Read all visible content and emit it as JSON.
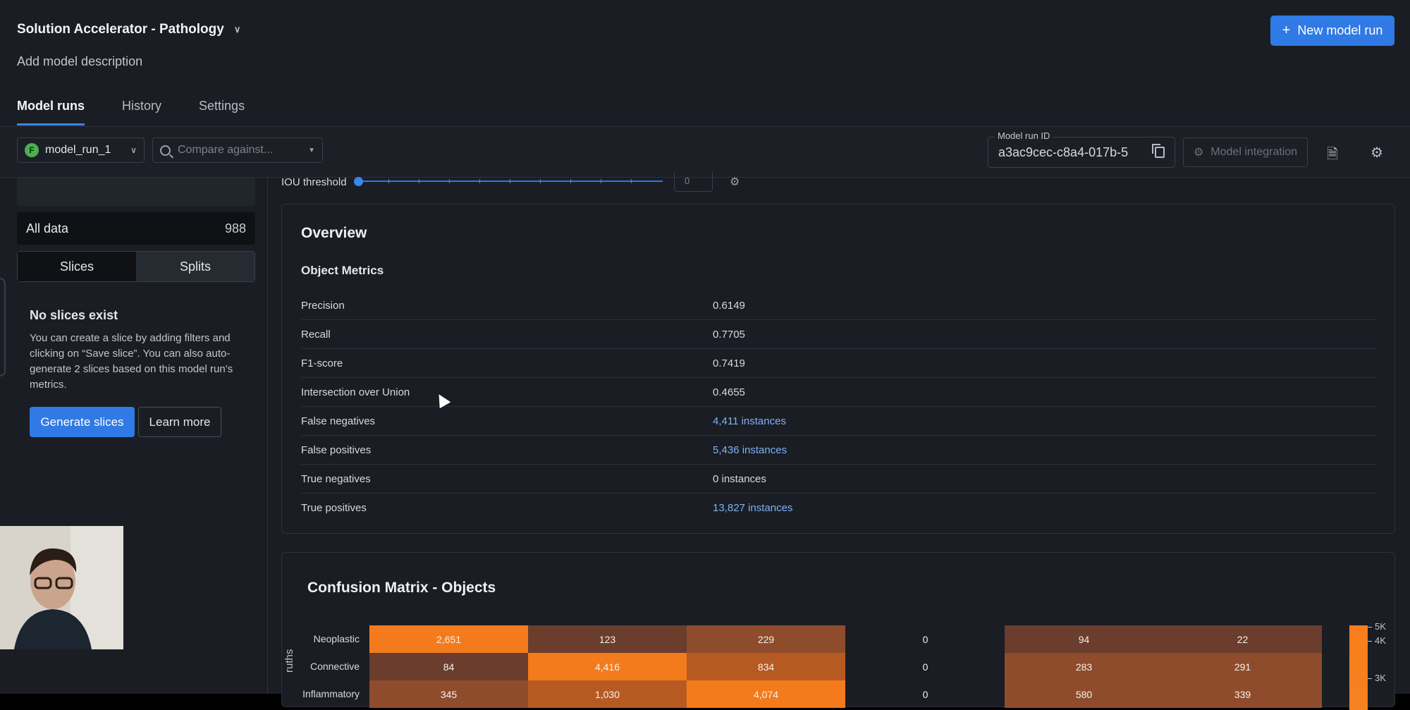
{
  "header": {
    "project_title": "Solution Accelerator - Pathology",
    "description": "Add model description",
    "new_run_label": "New model run"
  },
  "tabs": [
    {
      "label": "Model runs",
      "active": true
    },
    {
      "label": "History",
      "active": false
    },
    {
      "label": "Settings",
      "active": false
    }
  ],
  "toolbar": {
    "run_badge": "F",
    "run_name": "model_run_1",
    "compare_placeholder": "Compare against...",
    "run_id_label": "Model run ID",
    "run_id_value": "a3ac9cec-c8a4-017b-5",
    "integration_label": "Model integration"
  },
  "sidebar": {
    "all_data_label": "All data",
    "all_data_count": "988",
    "segments": [
      "Slices",
      "Splits"
    ],
    "empty_title": "No slices exist",
    "empty_text": "You can create a slice by adding filters and clicking on “Save slice”. You can also auto-generate 2 slices based on this model run’s metrics.",
    "generate_label": "Generate slices",
    "learn_label": "Learn more"
  },
  "iou": {
    "label": "IOU threshold",
    "value": "0"
  },
  "overview": {
    "title": "Overview",
    "subtitle": "Object Metrics",
    "metrics": [
      {
        "label": "Precision",
        "value": "0.6149",
        "link": false
      },
      {
        "label": "Recall",
        "value": "0.7705",
        "link": false
      },
      {
        "label": "F1-score",
        "value": "0.7419",
        "link": false
      },
      {
        "label": "Intersection over Union",
        "value": "0.4655",
        "link": false
      },
      {
        "label": "False negatives",
        "value": "4,411 instances",
        "link": true
      },
      {
        "label": "False positives",
        "value": "5,436 instances",
        "link": true
      },
      {
        "label": "True negatives",
        "value": "0 instances",
        "link": false
      },
      {
        "label": "True positives",
        "value": "13,827 instances",
        "link": true
      }
    ]
  },
  "confusion_matrix": {
    "title": "Confusion Matrix - Objects",
    "ylabel_fragment": "ruths",
    "rows": [
      {
        "label": "Neoplastic",
        "values": [
          "2,651",
          "123",
          "229",
          "0",
          "94",
          "22"
        ]
      },
      {
        "label": "Connective",
        "values": [
          "84",
          "4,416",
          "834",
          "0",
          "283",
          "291"
        ]
      },
      {
        "label": "Inflammatory",
        "values": [
          "345",
          "1,030",
          "4,074",
          "0",
          "580",
          "339"
        ]
      }
    ],
    "colorbar_labels": [
      "5K",
      "4K",
      "3K"
    ]
  }
}
